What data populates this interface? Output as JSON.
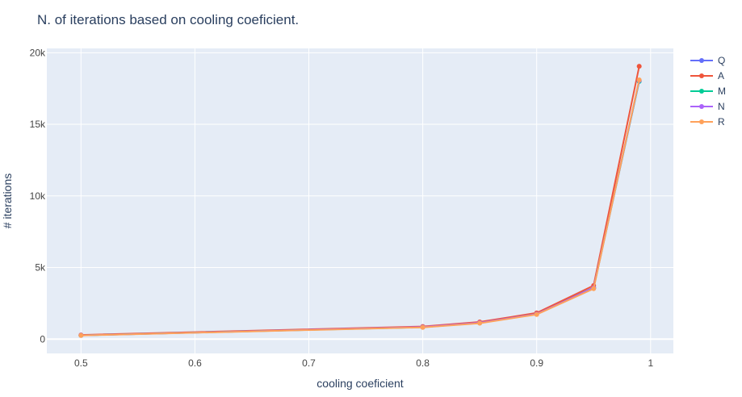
{
  "chart_data": {
    "type": "line",
    "title": "N. of iterations based on cooling coeficient.",
    "xlabel": "cooling coeficient",
    "ylabel": "# iterations",
    "xlim": [
      0.47,
      1.02
    ],
    "ylim": [
      -1000,
      20300
    ],
    "x_ticks": [
      0.5,
      0.6,
      0.7,
      0.8,
      0.9,
      1
    ],
    "x_tick_labels": [
      "0.5",
      "0.6",
      "0.7",
      "0.8",
      "0.9",
      "1"
    ],
    "y_ticks": [
      0,
      5000,
      10000,
      15000,
      20000
    ],
    "y_tick_labels": [
      "0",
      "5k",
      "10k",
      "15k",
      "20k"
    ],
    "grid": true,
    "legend_position": "top-right",
    "x": [
      0.5,
      0.8,
      0.85,
      0.9,
      0.95,
      0.99
    ],
    "series": [
      {
        "name": "Q",
        "color": "#636efa",
        "values": [
          270,
          850,
          1160,
          1770,
          3600,
          18050
        ]
      },
      {
        "name": "A",
        "color": "#ef553b",
        "values": [
          290,
          880,
          1200,
          1830,
          3740,
          19050
        ]
      },
      {
        "name": "M",
        "color": "#00cc96",
        "values": [
          260,
          830,
          1130,
          1740,
          3560,
          18000
        ]
      },
      {
        "name": "N",
        "color": "#ab63fa",
        "values": [
          265,
          840,
          1140,
          1750,
          3570,
          18050
        ]
      },
      {
        "name": "R",
        "color": "#ffa15a",
        "values": [
          255,
          820,
          1110,
          1720,
          3520,
          18100
        ]
      }
    ]
  }
}
